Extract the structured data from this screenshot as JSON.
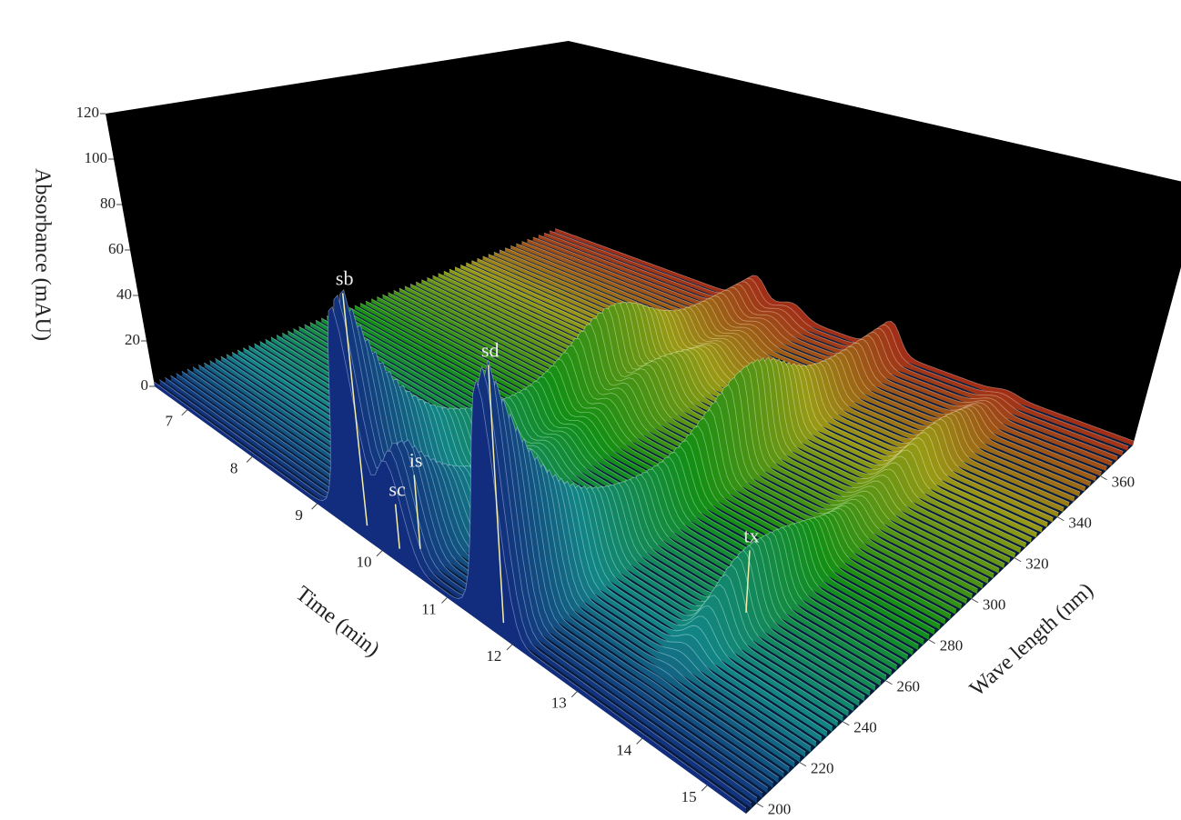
{
  "chart_data": {
    "type": "surface3d",
    "zlabel": "Absorbance (mAU)",
    "xlabel": "Time (min)",
    "ylabel": "Wave length (nm)",
    "xlim": [
      6.5,
      15.6
    ],
    "xticks": [
      7,
      8,
      9,
      10,
      11,
      12,
      13,
      14,
      15
    ],
    "ylim": [
      195,
      375
    ],
    "yticks": [
      200,
      220,
      240,
      260,
      280,
      300,
      320,
      340,
      360
    ],
    "zlim": [
      0,
      120
    ],
    "zticks": [
      0,
      20,
      40,
      60,
      80,
      100,
      120
    ],
    "peaks": [
      {
        "label": "sb",
        "time": 9.6,
        "wavelength": 200,
        "absorbance": 95
      },
      {
        "label": "is",
        "time": 10.25,
        "wavelength": 205,
        "absorbance": 30
      },
      {
        "label": "sc",
        "time": 10.1,
        "wavelength": 200,
        "absorbance": 18
      },
      {
        "label": "sd",
        "time": 11.7,
        "wavelength": 200,
        "absorbance": 100
      },
      {
        "label": "tx",
        "time": 13.6,
        "wavelength": 255,
        "absorbance": 25
      }
    ]
  }
}
